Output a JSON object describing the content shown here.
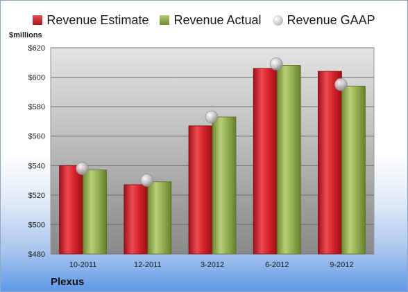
{
  "chart_data": {
    "type": "bar",
    "title": "",
    "unit_label": "$millions",
    "company": "Plexus",
    "categories": [
      "10-2011",
      "12-2011",
      "3-2012",
      "6-2012",
      "9-2012"
    ],
    "series": [
      {
        "name": "Revenue Estimate",
        "kind": "bar",
        "color": "#cc1f27",
        "values": [
          540,
          527,
          567,
          606,
          604
        ]
      },
      {
        "name": "Revenue Actual",
        "kind": "bar",
        "color": "#8faa4b",
        "values": [
          537,
          529,
          573,
          608,
          594
        ]
      },
      {
        "name": "Revenue GAAP",
        "kind": "marker",
        "color": "#b9b9b9",
        "values": [
          538,
          530,
          573,
          609,
          595
        ]
      }
    ],
    "y_ticks": [
      "$480",
      "$500",
      "$520",
      "$540",
      "$560",
      "$580",
      "$600",
      "$620"
    ],
    "ylim": [
      480,
      620
    ],
    "grid": true,
    "legend_position": "top"
  }
}
